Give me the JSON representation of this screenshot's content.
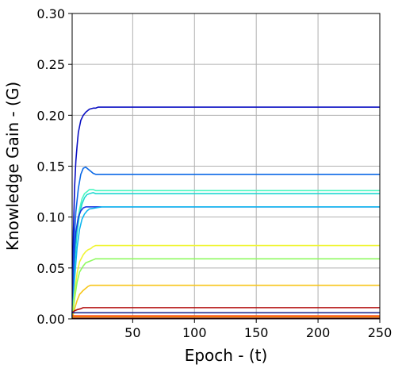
{
  "chart_data": {
    "type": "line",
    "title": "",
    "xlabel": "Epoch - (t)",
    "ylabel": "Knowledge Gain - (G)",
    "xlim": [
      1,
      250
    ],
    "ylim": [
      0,
      0.3
    ],
    "xticks": [
      50,
      100,
      150,
      200,
      250
    ],
    "xtick_labels": [
      "50",
      "100",
      "150",
      "200",
      "250"
    ],
    "yticks": [
      0,
      0.05,
      0.1,
      0.15,
      0.2,
      0.25,
      0.3
    ],
    "ytick_labels": [
      "0.00",
      "0.05",
      "0.10",
      "0.15",
      "0.20",
      "0.25",
      "0.30"
    ],
    "grid": true,
    "legend": "none",
    "series": [
      {
        "color": "#0a0fc2",
        "x": [
          1,
          2,
          3,
          4,
          5,
          6,
          8,
          10,
          12,
          15,
          18,
          20,
          22,
          25,
          30,
          250
        ],
        "y": [
          0.0,
          0.085,
          0.13,
          0.155,
          0.17,
          0.183,
          0.195,
          0.2,
          0.203,
          0.206,
          0.207,
          0.207,
          0.208,
          0.208,
          0.208,
          0.208
        ]
      },
      {
        "color": "#0a68e6",
        "x": [
          1,
          2,
          3,
          4,
          6,
          8,
          10,
          12,
          14,
          16,
          18,
          20,
          25,
          30,
          250
        ],
        "y": [
          0.0,
          0.05,
          0.085,
          0.105,
          0.128,
          0.142,
          0.148,
          0.149,
          0.147,
          0.145,
          0.143,
          0.142,
          0.142,
          0.142,
          0.142
        ]
      },
      {
        "color": "#4af7c0",
        "x": [
          1,
          3,
          5,
          7,
          9,
          11,
          13,
          15,
          18,
          20,
          25,
          30,
          40,
          250
        ],
        "y": [
          0.0,
          0.06,
          0.09,
          0.108,
          0.118,
          0.123,
          0.125,
          0.127,
          0.127,
          0.126,
          0.126,
          0.126,
          0.126,
          0.126
        ]
      },
      {
        "color": "#1cd8d0",
        "x": [
          1,
          3,
          5,
          7,
          9,
          11,
          13,
          15,
          18,
          20,
          25,
          30,
          40,
          250
        ],
        "y": [
          0.0,
          0.055,
          0.085,
          0.103,
          0.113,
          0.119,
          0.122,
          0.123,
          0.124,
          0.123,
          0.123,
          0.123,
          0.123,
          0.123
        ]
      },
      {
        "color": "#1a3ae0",
        "x": [
          1,
          2,
          3,
          4,
          6,
          8,
          10,
          12,
          14,
          16,
          20,
          250
        ],
        "y": [
          0.0,
          0.045,
          0.07,
          0.085,
          0.1,
          0.106,
          0.109,
          0.11,
          0.11,
          0.11,
          0.11,
          0.11
        ]
      },
      {
        "color": "#10b6ef",
        "x": [
          1,
          3,
          5,
          7,
          9,
          11,
          13,
          15,
          20,
          25,
          250
        ],
        "y": [
          0.0,
          0.04,
          0.07,
          0.088,
          0.098,
          0.103,
          0.106,
          0.108,
          0.109,
          0.11,
          0.11
        ]
      },
      {
        "color": "#f0f535",
        "x": [
          1,
          3,
          5,
          7,
          10,
          12,
          14,
          16,
          18,
          20,
          25,
          250
        ],
        "y": [
          0.0,
          0.025,
          0.045,
          0.056,
          0.063,
          0.066,
          0.068,
          0.069,
          0.071,
          0.072,
          0.072,
          0.072
        ]
      },
      {
        "color": "#8ffa60",
        "x": [
          1,
          3,
          5,
          7,
          10,
          12,
          14,
          16,
          18,
          20,
          25,
          250
        ],
        "y": [
          0.0,
          0.02,
          0.036,
          0.046,
          0.052,
          0.055,
          0.056,
          0.057,
          0.058,
          0.059,
          0.059,
          0.059
        ]
      },
      {
        "color": "#f7c61a",
        "x": [
          1,
          3,
          5,
          7,
          10,
          12,
          14,
          16,
          18,
          20,
          25,
          250
        ],
        "y": [
          0.0,
          0.01,
          0.018,
          0.024,
          0.028,
          0.03,
          0.032,
          0.033,
          0.033,
          0.033,
          0.033,
          0.033
        ]
      },
      {
        "color": "#b30e0e",
        "x": [
          1,
          3,
          5,
          8,
          10,
          12,
          15,
          20,
          250
        ],
        "y": [
          0.006,
          0.008,
          0.009,
          0.01,
          0.011,
          0.011,
          0.011,
          0.011,
          0.011
        ]
      },
      {
        "color": "#1f2c8f",
        "x": [
          1,
          5,
          10,
          250
        ],
        "y": [
          0.006,
          0.006,
          0.006,
          0.006
        ]
      },
      {
        "color": "#ff3b0a",
        "x": [
          1,
          5,
          10,
          250
        ],
        "y": [
          0.003,
          0.003,
          0.003,
          0.003
        ]
      },
      {
        "color": "#f08c08",
        "x": [
          1,
          5,
          10,
          250
        ],
        "y": [
          0.002,
          0.002,
          0.002,
          0.002
        ]
      },
      {
        "color": "#5a0000",
        "x": [
          1,
          5,
          10,
          250
        ],
        "y": [
          0.0005,
          0.0005,
          0.0005,
          0.0005
        ]
      }
    ]
  }
}
